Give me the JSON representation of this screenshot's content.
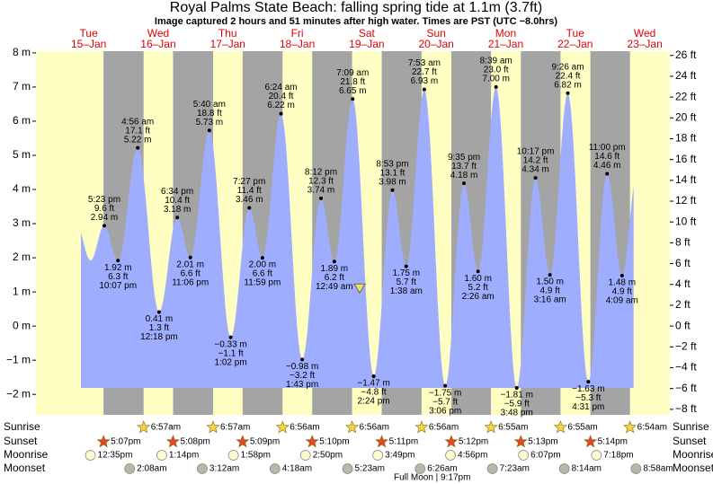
{
  "title": "Royal Palms State Beach: falling  spring tide at 1.1m (3.7ft)",
  "subtitle": "Image captured 2 hours and 51 minutes after high water. Times are PST (UTC −8.0hrs)",
  "current_height_m": 1.1,
  "ylim": [
    -2.6,
    8.05
  ],
  "yticks": [
    {
      "value": -2,
      "label": "−2 m"
    },
    {
      "value": -1,
      "label": "−1 m"
    },
    {
      "value": 0,
      "label": "0 m"
    },
    {
      "value": 1,
      "label": "1 m"
    },
    {
      "value": 2,
      "label": "2 m"
    },
    {
      "value": 3,
      "label": "3 m"
    },
    {
      "value": 4,
      "label": "4 m"
    },
    {
      "value": 5,
      "label": "5 m"
    },
    {
      "value": 6,
      "label": "6 m"
    },
    {
      "value": 7,
      "label": "7 m"
    },
    {
      "value": 8,
      "label": "8 m"
    }
  ],
  "y2lim": [
    -8.53,
    26.41
  ],
  "y2ticks": [
    {
      "value": -8,
      "label": "−8 ft"
    },
    {
      "value": -6,
      "label": "−6 ft"
    },
    {
      "value": -4,
      "label": "−4 ft"
    },
    {
      "value": -2,
      "label": "−2 ft"
    },
    {
      "value": 0,
      "label": "0 ft"
    },
    {
      "value": 2,
      "label": "2 ft"
    },
    {
      "value": 4,
      "label": "4 ft"
    },
    {
      "value": 6,
      "label": "6 ft"
    },
    {
      "value": 8,
      "label": "8 ft"
    },
    {
      "value": 10,
      "label": "10 ft"
    },
    {
      "value": 12,
      "label": "12 ft"
    },
    {
      "value": 14,
      "label": "14 ft"
    },
    {
      "value": 16,
      "label": "16 ft"
    },
    {
      "value": 18,
      "label": "18 ft"
    },
    {
      "value": 20,
      "label": "20 ft"
    },
    {
      "value": 22,
      "label": "22 ft"
    },
    {
      "value": 24,
      "label": "24 ft"
    },
    {
      "value": 26,
      "label": "26 ft"
    }
  ],
  "row_labels": [
    "Sunrise",
    "Sunset",
    "Moonrise",
    "Moonset"
  ],
  "days": [
    {
      "name": "Tue",
      "date": "15–Jan",
      "sunrise": null,
      "sunset": "5:07pm",
      "moonrise": "12:35pm",
      "moonset": null
    },
    {
      "name": "Wed",
      "date": "16–Jan",
      "sunrise": "6:57am",
      "sunset": "5:08pm",
      "moonrise": "1:14pm",
      "moonset": "2:08am"
    },
    {
      "name": "Thu",
      "date": "17–Jan",
      "sunrise": "6:57am",
      "sunset": "5:09pm",
      "moonrise": "1:58pm",
      "moonset": "3:12am"
    },
    {
      "name": "Fri",
      "date": "18–Jan",
      "sunrise": "6:56am",
      "sunset": "5:10pm",
      "moonrise": "2:50pm",
      "moonset": "4:18am"
    },
    {
      "name": "Sat",
      "date": "19–Jan",
      "sunrise": "6:56am",
      "sunset": "5:11pm",
      "moonrise": "3:49pm",
      "moonset": "5:23am"
    },
    {
      "name": "Sun",
      "date": "20–Jan",
      "sunrise": "6:56am",
      "sunset": "5:12pm",
      "moonrise": "4:56pm",
      "moonset": "6:26am"
    },
    {
      "name": "Mon",
      "date": "21–Jan",
      "sunrise": "6:55am",
      "sunset": "5:13pm",
      "moonrise": "6:07pm",
      "moonset": "7:23am"
    },
    {
      "name": "Tue",
      "date": "22–Jan",
      "sunrise": "6:55am",
      "sunset": "5:14pm",
      "moonrise": "7:18pm",
      "moonset": "8:14am"
    },
    {
      "name": "Wed",
      "date": "23–Jan",
      "sunrise": "6:54am",
      "sunset": null,
      "moonrise": null,
      "moonset": "8:58am"
    }
  ],
  "full_moon": "Full Moon | 9:17pm",
  "tides": [
    {
      "time": "5:23 pm",
      "ft": "9.6 ft",
      "m": 2.94,
      "m_label": "2.94 m"
    },
    {
      "time": "10:07 pm",
      "ft": "6.3 ft",
      "m": 1.92,
      "m_label": "1.92 m"
    },
    {
      "time": "4:56 am",
      "ft": "17.1 ft",
      "m": 5.22,
      "m_label": "5.22 m"
    },
    {
      "time": "12:18 pm",
      "ft": "1.3 ft",
      "m": 0.41,
      "m_label": "0.41 m"
    },
    {
      "time": "6:34 pm",
      "ft": "10.4 ft",
      "m": 3.18,
      "m_label": "3.18 m"
    },
    {
      "time": "11:06 pm",
      "ft": "6.6 ft",
      "m": 2.01,
      "m_label": "2.01 m"
    },
    {
      "time": "5:40 am",
      "ft": "18.8 ft",
      "m": 5.73,
      "m_label": "5.73 m"
    },
    {
      "time": "1:02 pm",
      "ft": "−1.1 ft",
      "m": -0.33,
      "m_label": "−0.33 m"
    },
    {
      "time": "7:27 pm",
      "ft": "11.4 ft",
      "m": 3.46,
      "m_label": "3.46 m"
    },
    {
      "time": "11:59 pm",
      "ft": "6.6 ft",
      "m": 2.0,
      "m_label": "2.00 m"
    },
    {
      "time": "6:24 am",
      "ft": "20.4 ft",
      "m": 6.22,
      "m_label": "6.22 m"
    },
    {
      "time": "1:43 pm",
      "ft": "−3.2 ft",
      "m": -0.98,
      "m_label": "−0.98 m"
    },
    {
      "time": "8:12 pm",
      "ft": "12.3 ft",
      "m": 3.74,
      "m_label": "3.74 m"
    },
    {
      "time": "12:49 am",
      "ft": "6.2 ft",
      "m": 1.89,
      "m_label": "1.89 m"
    },
    {
      "time": "7:09 am",
      "ft": "21.8 ft",
      "m": 6.65,
      "m_label": "6.65 m"
    },
    {
      "time": "2:24 pm",
      "ft": "−4.8 ft",
      "m": -1.47,
      "m_label": "−1.47 m"
    },
    {
      "time": "8:53 pm",
      "ft": "13.1 ft",
      "m": 3.98,
      "m_label": "3.98 m"
    },
    {
      "time": "1:38 am",
      "ft": "5.7 ft",
      "m": 1.75,
      "m_label": "1.75 m"
    },
    {
      "time": "7:53 am",
      "ft": "22.7 ft",
      "m": 6.93,
      "m_label": "6.93 m"
    },
    {
      "time": "3:06 pm",
      "ft": "−5.7 ft",
      "m": -1.75,
      "m_label": "−1.75 m"
    },
    {
      "time": "9:35 pm",
      "ft": "13.7 ft",
      "m": 4.18,
      "m_label": "4.18 m"
    },
    {
      "time": "2:26 am",
      "ft": "5.2 ft",
      "m": 1.6,
      "m_label": "1.60 m"
    },
    {
      "time": "8:39 am",
      "ft": "23.0 ft",
      "m": 7.0,
      "m_label": "7.00 m"
    },
    {
      "time": "3:48 pm",
      "ft": "−5.9 ft",
      "m": -1.81,
      "m_label": "−1.81 m"
    },
    {
      "time": "10:17 pm",
      "ft": "14.2 ft",
      "m": 4.34,
      "m_label": "4.34 m"
    },
    {
      "time": "3:16 am",
      "ft": "4.9 ft",
      "m": 1.5,
      "m_label": "1.50 m"
    },
    {
      "time": "9:26 am",
      "ft": "22.4 ft",
      "m": 6.82,
      "m_label": "6.82 m"
    },
    {
      "time": "4:31 pm",
      "ft": "−5.3 ft",
      "m": -1.63,
      "m_label": "−1.63 m"
    },
    {
      "time": "11:00 pm",
      "ft": "14.6 ft",
      "m": 4.46,
      "m_label": "4.46 m"
    },
    {
      "time": "4:09 am",
      "ft": "4.9 ft",
      "m": 1.48,
      "m_label": "1.48 m"
    }
  ]
}
